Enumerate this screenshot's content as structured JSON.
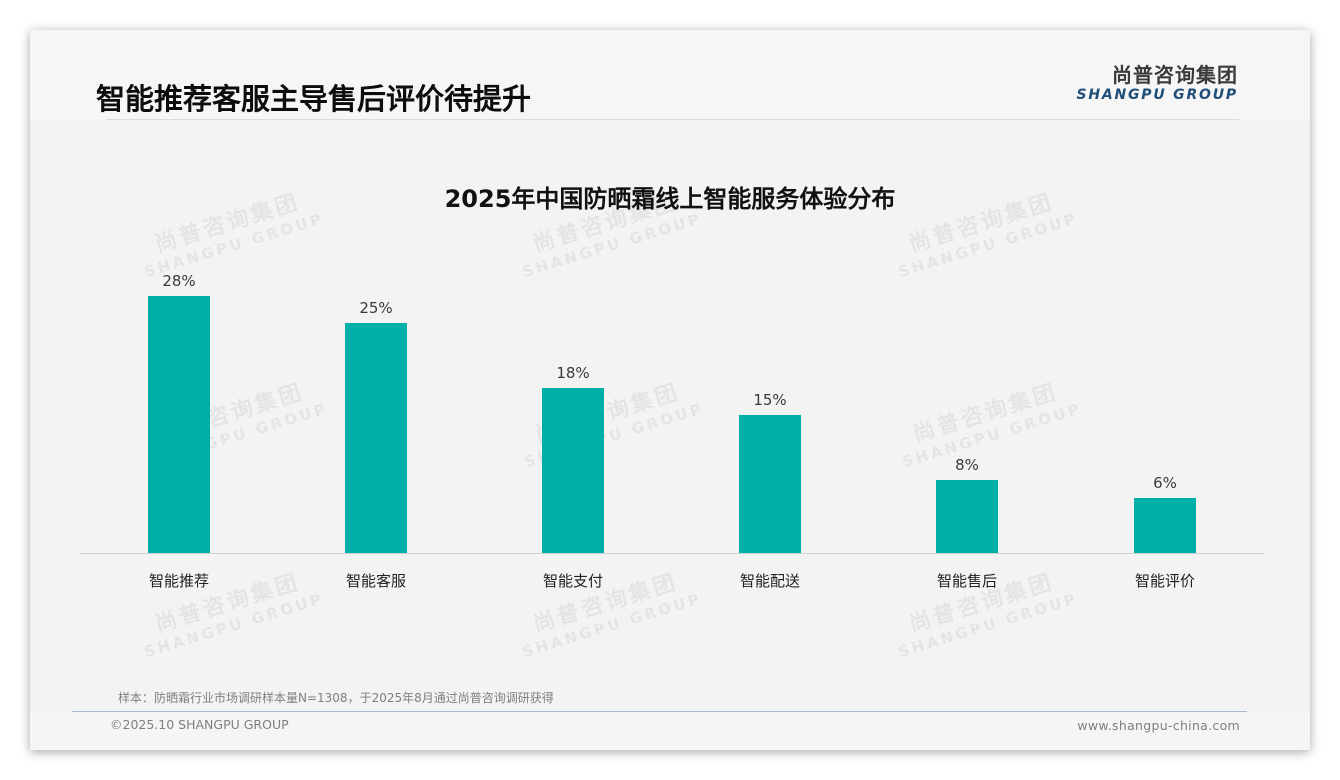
{
  "header": {
    "title": "智能推荐客服主导售后评价待提升",
    "logo_cn": "尚普咨询集团",
    "logo_en": "SHANGPU GROUP"
  },
  "watermark": {
    "cn": "尚普咨询集团",
    "en": "SHANGPU GROUP"
  },
  "colors": {
    "bar": "#00b0a8",
    "logo_en": "#1f4e79"
  },
  "chart_data": {
    "type": "bar",
    "title": "2025年中国防晒霜线上智能服务体验分布",
    "categories": [
      "智能推荐",
      "智能客服",
      "智能支付",
      "智能配送",
      "智能售后",
      "智能评价"
    ],
    "values": [
      28,
      25,
      18,
      15,
      8,
      6
    ],
    "value_labels": [
      "28%",
      "25%",
      "18%",
      "15%",
      "8%",
      "6%"
    ],
    "unit": "%",
    "xlabel": "",
    "ylabel": "",
    "ylim": [
      0,
      30
    ],
    "grid": false,
    "legend": "none"
  },
  "footer": {
    "note": "样本：防晒霜行业市场调研样本量N=1308，于2025年8月通过尚普咨询调研获得",
    "copyright": "©2025.10 SHANGPU GROUP",
    "website": "www.shangpu-china.com"
  }
}
